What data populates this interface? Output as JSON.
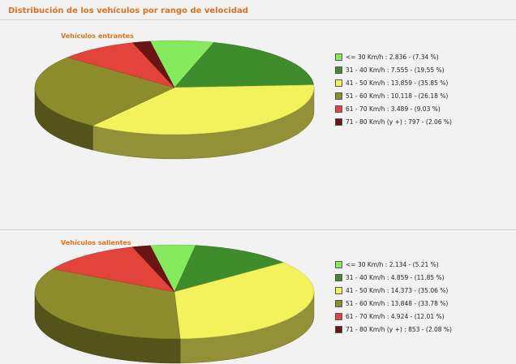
{
  "header": {
    "title": "Distribución de los vehículos por rango de velocidad"
  },
  "chart_data": [
    {
      "type": "pie",
      "title": "Vehículos entrantes",
      "categories": [
        "<= 30 Km/h",
        "31 - 40 Km/h",
        "41 - 50 Km/h",
        "51 - 60 Km/h",
        "61 - 70 Km/h",
        "71 - 80 Km/h (y +)"
      ],
      "series": [
        {
          "values": [
            2836,
            7555,
            13859,
            10118,
            3489,
            797
          ],
          "value_labels": [
            "2.836",
            "7.555",
            "13.859",
            "10.118",
            "3.489",
            "797"
          ],
          "percents": [
            7.34,
            19.55,
            35.85,
            26.18,
            9.03,
            2.06
          ],
          "percent_labels": [
            "(7.34 %)",
            "(19.55 %)",
            "(35.85 %)",
            "(26.18 %)",
            "(9.03 %)",
            "(2.06 %)"
          ]
        }
      ],
      "colors": [
        "#86ea5e",
        "#3f8c2c",
        "#f3f25c",
        "#8c8c2c",
        "#e2433b",
        "#6b1414"
      ]
    },
    {
      "type": "pie",
      "title": "Vehículos salientes",
      "categories": [
        "<= 30 Km/h",
        "31 - 40 Km/h",
        "41 - 50 Km/h",
        "51 - 60 Km/h",
        "61 - 70 Km/h",
        "71 - 80 Km/h (y +)"
      ],
      "series": [
        {
          "values": [
            2134,
            4859,
            14373,
            13848,
            4924,
            853
          ],
          "value_labels": [
            "2.134",
            "4.859",
            "14.373",
            "13.848",
            "4.924",
            "853"
          ],
          "percents": [
            5.21,
            11.85,
            35.06,
            33.78,
            12.01,
            2.08
          ],
          "percent_labels": [
            "(5.21 %)",
            "(11.85 %)",
            "(35.06 %)",
            "(33.78 %)",
            "(12.01 %)",
            "(2.08 %)"
          ]
        }
      ],
      "colors": [
        "#86ea5e",
        "#3f8c2c",
        "#f3f25c",
        "#8c8c2c",
        "#e2433b",
        "#6b1414"
      ]
    }
  ]
}
